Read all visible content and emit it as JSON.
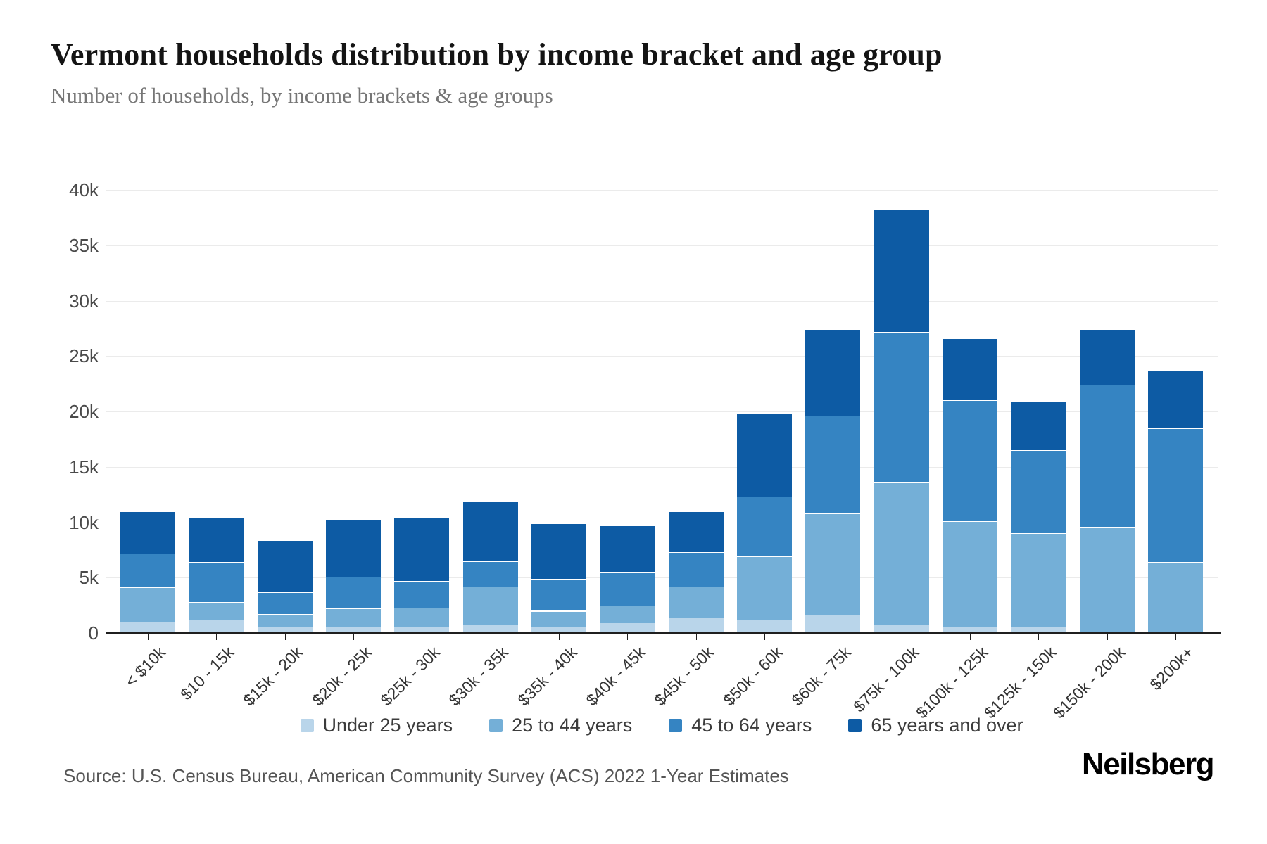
{
  "header": {
    "title": "Vermont households distribution by income bracket and age group",
    "subtitle": "Number of households, by income brackets & age groups"
  },
  "chart_data": {
    "type": "bar",
    "stacked": true,
    "title": "Vermont households distribution by income bracket and age group",
    "subtitle": "Number of households, by income brackets & age groups",
    "unit": "households",
    "categories": [
      "< $10k",
      "$10 - 15k",
      "$15k - 20k",
      "$20k - 25k",
      "$25k - 30k",
      "$30k - 35k",
      "$35k - 40k",
      "$40k - 45k",
      "$45k - 50k",
      "$50k - 60k",
      "$60k - 75k",
      "$75k - 100k",
      "$100k - 125k",
      "$125k - 150k",
      "$150k - 200k",
      "$200k+"
    ],
    "series": [
      {
        "name": "Under 25 years",
        "color": "#b9d5ea",
        "values": [
          1000,
          1200,
          600,
          500,
          600,
          700,
          600,
          900,
          1400,
          1200,
          1600,
          700,
          600,
          500,
          100,
          100
        ]
      },
      {
        "name": "25 to 44 years",
        "color": "#74afd7",
        "values": [
          3100,
          1600,
          1100,
          1700,
          1700,
          3500,
          1400,
          1600,
          2800,
          5700,
          9200,
          12900,
          9500,
          8500,
          9500,
          6300
        ]
      },
      {
        "name": "45 to 64 years",
        "color": "#3584c2",
        "values": [
          3100,
          3600,
          2000,
          2900,
          2400,
          2300,
          2900,
          3000,
          3100,
          5400,
          8800,
          13600,
          10900,
          7500,
          12800,
          12100
        ]
      },
      {
        "name": "65 years and over",
        "color": "#0d5ba4",
        "values": [
          3800,
          4000,
          4700,
          5100,
          5700,
          5400,
          5000,
          4200,
          3700,
          7600,
          7800,
          11000,
          5600,
          4400,
          5000,
          5200
        ]
      }
    ],
    "totals": [
      11000,
      10400,
      8400,
      10200,
      10400,
      11900,
      9900,
      9700,
      11000,
      19900,
      27400,
      38200,
      26600,
      20900,
      27400,
      23700
    ],
    "xlabel": "",
    "ylabel": "",
    "ylim": [
      0,
      40000
    ],
    "y_ticks": [
      "0",
      "5k",
      "10k",
      "15k",
      "20k",
      "25k",
      "30k",
      "35k",
      "40k"
    ],
    "grid": true,
    "legend_position": "bottom"
  },
  "footer": {
    "source": "Source: U.S. Census Bureau, American Community Survey (ACS) 2022 1-Year Estimates",
    "brand": "Neilsberg"
  }
}
